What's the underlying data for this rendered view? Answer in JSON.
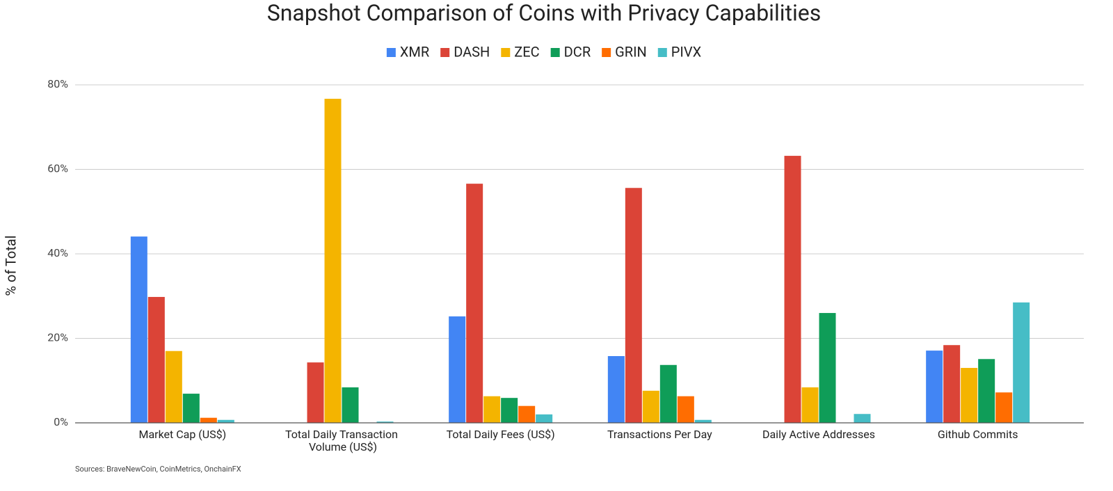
{
  "chart_data": {
    "type": "bar",
    "title": "Snapshot Comparison of Coins with Privacy Capabilities",
    "y_label": "% of Total",
    "note": "Sources: BraveNewCoin, CoinMetrics, OnchainFX",
    "categories": [
      "Market Cap (US$)",
      "Total Daily Transaction Volume (US$)",
      "Total Daily Fees (US$)",
      "Transactions Per Day",
      "Daily Active Addresses",
      "Github Commits"
    ],
    "series": [
      {
        "name": "XMR",
        "color": "#4285f4",
        "values": [
          44.1,
          null,
          25.2,
          15.8,
          null,
          17.1
        ]
      },
      {
        "name": "DASH",
        "color": "#db4437",
        "values": [
          29.8,
          14.3,
          56.6,
          55.6,
          63.2,
          18.4
        ]
      },
      {
        "name": "ZEC",
        "color": "#f4b400",
        "values": [
          17.0,
          76.7,
          6.3,
          7.6,
          8.4,
          13.0
        ]
      },
      {
        "name": "DCR",
        "color": "#0f9d58",
        "values": [
          6.9,
          8.4,
          5.9,
          13.7,
          26.0,
          15.1
        ]
      },
      {
        "name": "GRIN",
        "color": "#ff6d01",
        "values": [
          1.2,
          null,
          4.0,
          6.3,
          null,
          7.2
        ]
      },
      {
        "name": "PIVX",
        "color": "#46bdc6",
        "values": [
          0.7,
          0.3,
          2.0,
          0.7,
          2.1,
          28.5
        ]
      }
    ],
    "ylim": [
      0,
      80
    ],
    "yticks": [
      {
        "value": 0,
        "label": "0%"
      },
      {
        "value": 20,
        "label": "20%"
      },
      {
        "value": 40,
        "label": "40%"
      },
      {
        "value": 60,
        "label": "60%"
      },
      {
        "value": 80,
        "label": "80%"
      }
    ],
    "grid": true,
    "legend": "top"
  }
}
